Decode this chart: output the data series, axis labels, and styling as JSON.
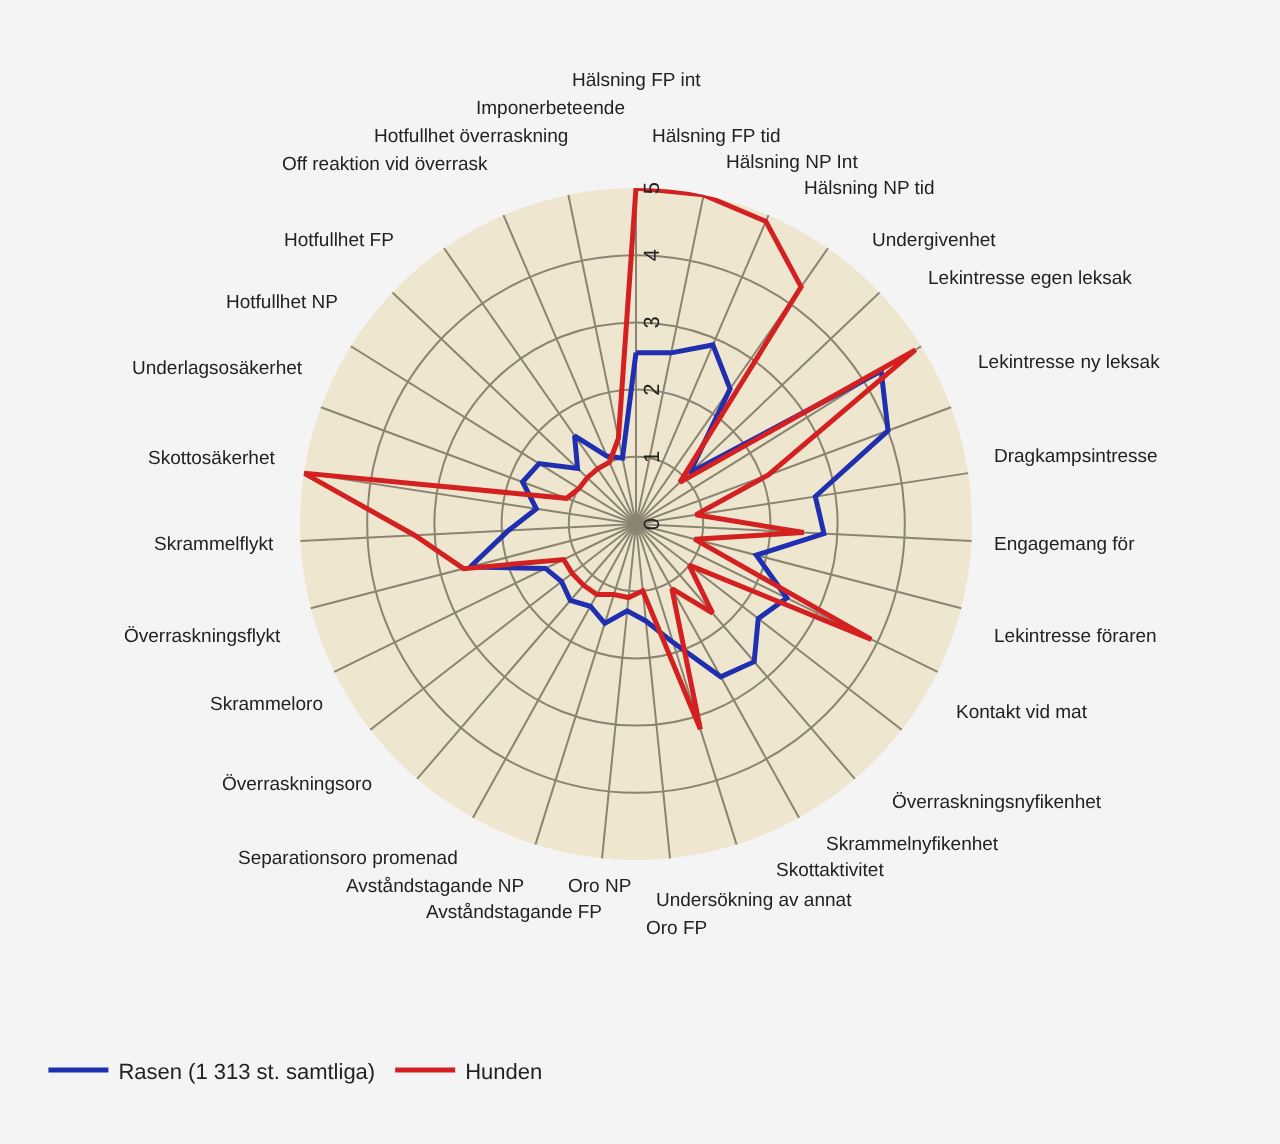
{
  "chart_data": {
    "type": "radar",
    "categories": [
      "Hälsning FP int",
      "Hälsning FP tid",
      "Hälsning NP Int",
      "Hälsning NP tid",
      "Undergivenhet",
      "Lekintresse egen leksak",
      "Lekintresse ny leksak",
      "Dragkampsintresse",
      "Engagemang för",
      "Lekintresse föraren",
      "Kontakt vid mat",
      "Överraskningsnyfikenhet",
      "Skrammelnyfikenhet",
      "Skottaktivitet",
      "Undersökning av annat",
      "Oro FP",
      "Oro NP",
      "Avståndstagande FP",
      "Avståndstagande NP",
      "Separationsoro promenad",
      "Överraskningsoro",
      "Skrammeloro",
      "Överraskningsflykt",
      "Skrammelflykt",
      "Skottosäkerhet",
      "Underlagsosäkerhet",
      "Hotfullhet NP",
      "Hotfullhet FP",
      "Off reaktion vid överrask",
      "Hotfullhet överraskning",
      "Imponerbeteende"
    ],
    "series": [
      {
        "name": "Rasen (1 313 st. samtliga)",
        "color": "#1f2fb0",
        "values": [
          2.55,
          2.6,
          2.9,
          2.45,
          1.1,
          4.3,
          4.0,
          2.7,
          2.8,
          1.85,
          2.5,
          2.3,
          2.7,
          2.6,
          1.85,
          1.45,
          1.3,
          1.55,
          1.4,
          1.5,
          1.4,
          1.5,
          2.55,
          1.9,
          1.5,
          1.8,
          1.7,
          1.2,
          1.6,
          1.1,
          1.0
        ]
      },
      {
        "name": "Hunden",
        "color": "#d42020",
        "values": [
          5,
          5,
          4.9,
          4.3,
          0.9,
          4.9,
          2.1,
          0.9,
          2.5,
          0.9,
          3.9,
          1.0,
          1.75,
          1.1,
          3.2,
          1.0,
          1.1,
          1.1,
          1.2,
          1.2,
          1.2,
          1.2,
          2.65,
          3.3,
          5,
          1.1,
          1.0,
          1.0,
          1.0,
          1.0,
          1.3
        ]
      }
    ],
    "ylim": [
      0,
      5
    ],
    "yticks": [
      0,
      1,
      2,
      3,
      4,
      5
    ],
    "grid": true,
    "legend": "bottom left"
  }
}
